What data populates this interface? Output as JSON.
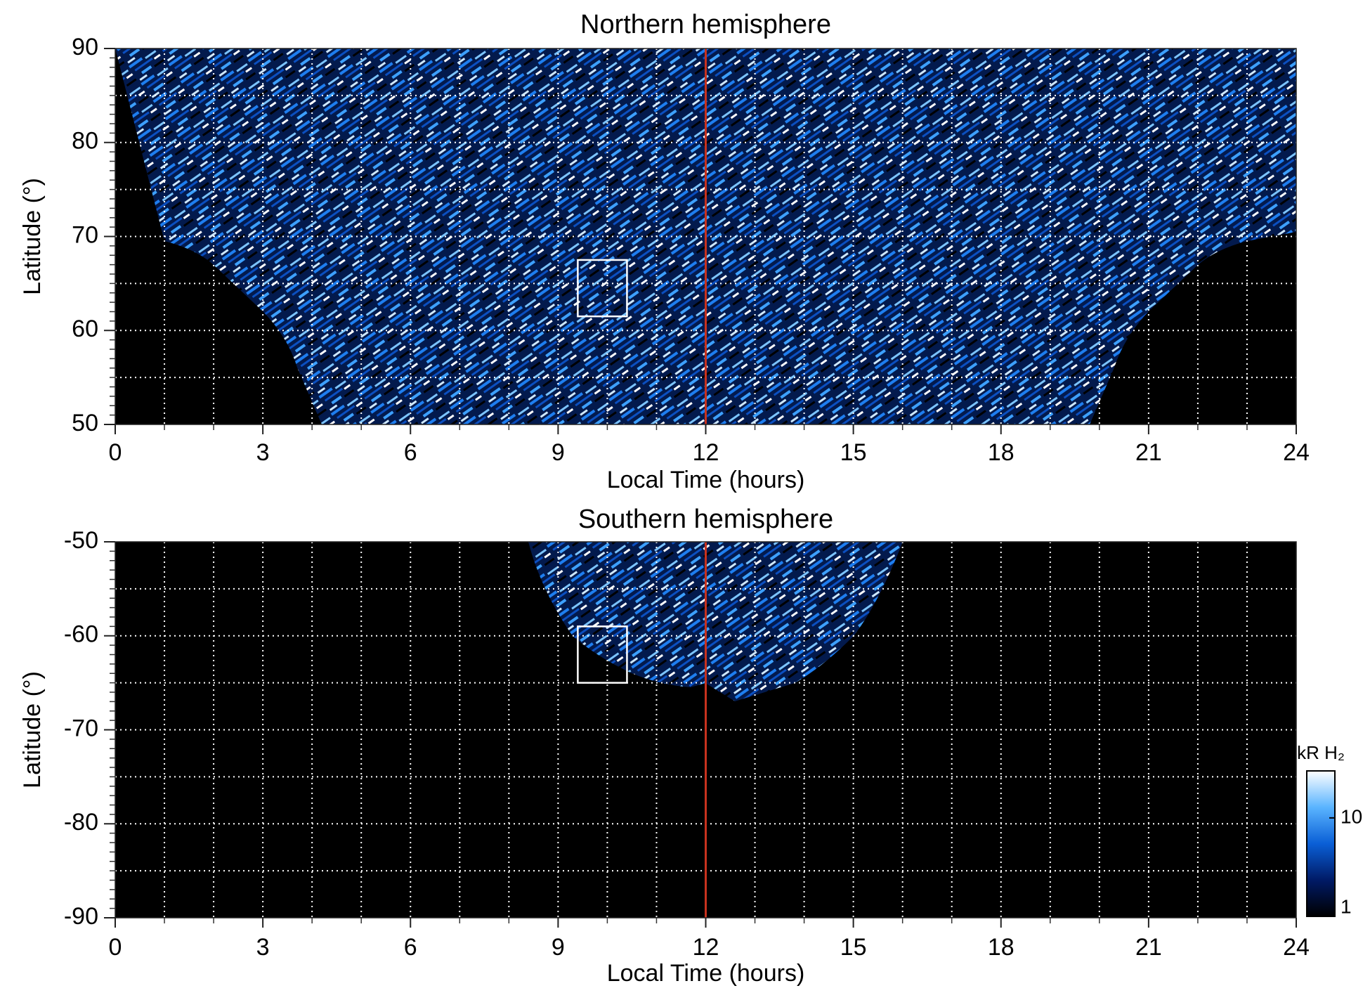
{
  "chart_data": [
    {
      "type": "heatmap",
      "title": "Northern hemisphere",
      "xlabel": "Local Time (hours)",
      "ylabel": "Latitude (°)",
      "xlim": [
        0,
        24
      ],
      "xticks": [
        0,
        3,
        6,
        9,
        12,
        15,
        18,
        21,
        24
      ],
      "ylim": [
        50,
        90
      ],
      "yticks": [
        50,
        60,
        70,
        80,
        90
      ],
      "grid": true,
      "xgrid_step": 1,
      "ygrid_step": 5,
      "yminor_step": 1,
      "vline": 12,
      "vline_color": "#c8321e",
      "box": {
        "x": [
          9.4,
          10.4
        ],
        "y": [
          61.5,
          67.5
        ]
      },
      "box_color": "#ffffff"
    },
    {
      "type": "heatmap",
      "title": "Southern hemisphere",
      "xlabel": "Local Time (hours)",
      "ylabel": "Latitude (°)",
      "xlim": [
        0,
        24
      ],
      "xticks": [
        0,
        3,
        6,
        9,
        12,
        15,
        18,
        21,
        24
      ],
      "ylim": [
        -90,
        -50
      ],
      "yticks": [
        -90,
        -80,
        -70,
        -60,
        -50
      ],
      "grid": true,
      "xgrid_step": 1,
      "ygrid_step": 5,
      "yminor_step": 1,
      "vline": 12,
      "vline_color": "#c8321e",
      "box": {
        "x": [
          9.4,
          10.4
        ],
        "y": [
          -65,
          -59
        ]
      },
      "box_color": "#ffffff",
      "colorbar": {
        "label": "kR H₂",
        "lim": [
          1,
          30
        ],
        "ticks": [
          1,
          10
        ],
        "log": true,
        "colors": [
          "#000000",
          "#001a66",
          "#0a5fd6",
          "#5ab4ff",
          "#ffffff"
        ]
      }
    }
  ]
}
